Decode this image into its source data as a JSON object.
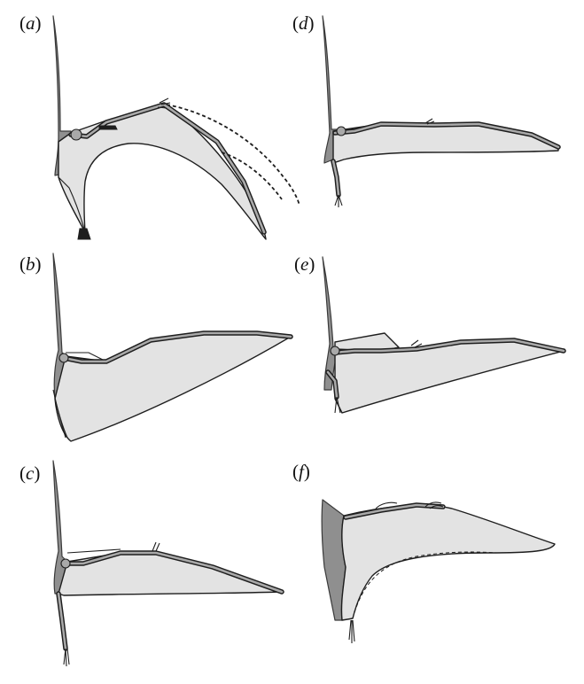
{
  "panels": [
    {
      "id": "a",
      "open": "(",
      "letter": "a",
      "close": ")"
    },
    {
      "id": "b",
      "open": "(",
      "letter": "b",
      "close": ")"
    },
    {
      "id": "c",
      "open": "(",
      "letter": "c",
      "close": ")"
    },
    {
      "id": "d",
      "open": "(",
      "letter": "d",
      "close": ")"
    },
    {
      "id": "e",
      "open": "(",
      "letter": "e",
      "close": ")"
    },
    {
      "id": "f",
      "open": "(",
      "letter": "f",
      "close": ")"
    }
  ],
  "colors": {
    "body": "#8f8f8f",
    "membrane": "#e3e3e3",
    "outline": "#1e1e1e",
    "bone_core": "#a9a9a9"
  }
}
